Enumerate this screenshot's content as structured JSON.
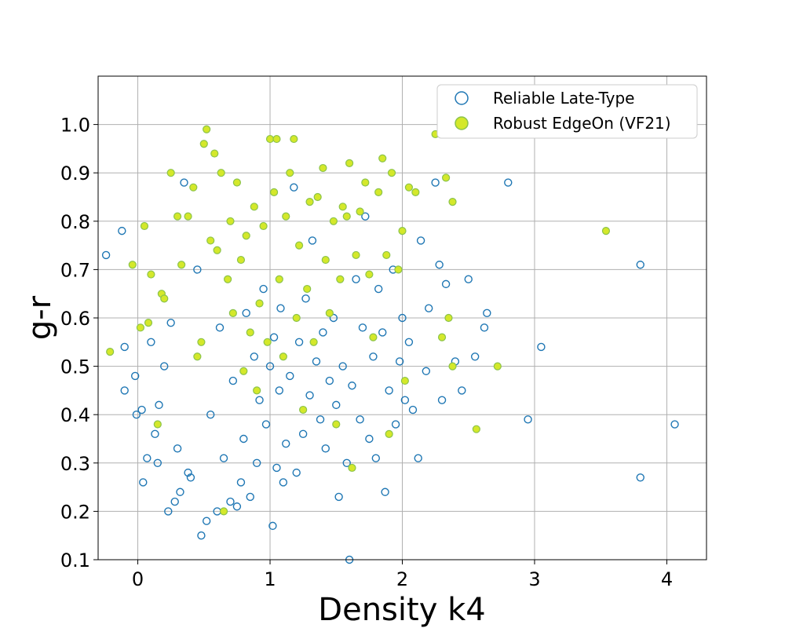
{
  "chart_data": {
    "type": "scatter",
    "title": "",
    "xlabel": "Density k4",
    "ylabel": "g-r",
    "xlim": [
      -0.3,
      4.3
    ],
    "ylim": [
      0.1,
      1.1
    ],
    "xticks": [
      "0",
      "1",
      "2",
      "3",
      "4"
    ],
    "yticks": [
      "0.1",
      "0.2",
      "0.3",
      "0.4",
      "0.5",
      "0.6",
      "0.7",
      "0.8",
      "0.9",
      "1.0"
    ],
    "grid": true,
    "legend_position": "top-right",
    "colors": {
      "late_type_edge": "#1f77b4",
      "edgeon_fill": "#d4e82a",
      "edgeon_edge": "#8bc34a",
      "grid": "#b0b0b0"
    },
    "series": [
      {
        "name": "Reliable Late-Type",
        "marker": "open-circle",
        "points": [
          [
            -0.24,
            0.73
          ],
          [
            -0.12,
            0.78
          ],
          [
            -0.1,
            0.45
          ],
          [
            -0.1,
            0.54
          ],
          [
            -0.02,
            0.48
          ],
          [
            -0.01,
            0.4
          ],
          [
            0.03,
            0.41
          ],
          [
            0.04,
            0.26
          ],
          [
            0.07,
            0.31
          ],
          [
            0.1,
            0.55
          ],
          [
            0.13,
            0.36
          ],
          [
            0.15,
            0.3
          ],
          [
            0.16,
            0.42
          ],
          [
            0.2,
            0.5
          ],
          [
            0.23,
            0.2
          ],
          [
            0.25,
            0.59
          ],
          [
            0.28,
            0.22
          ],
          [
            0.3,
            0.33
          ],
          [
            0.32,
            0.24
          ],
          [
            0.35,
            0.88
          ],
          [
            0.38,
            0.28
          ],
          [
            0.4,
            0.27
          ],
          [
            0.45,
            0.7
          ],
          [
            0.48,
            0.15
          ],
          [
            0.52,
            0.18
          ],
          [
            0.55,
            0.4
          ],
          [
            0.6,
            0.2
          ],
          [
            0.62,
            0.58
          ],
          [
            0.65,
            0.31
          ],
          [
            0.7,
            0.22
          ],
          [
            0.72,
            0.47
          ],
          [
            0.75,
            0.21
          ],
          [
            0.78,
            0.26
          ],
          [
            0.8,
            0.35
          ],
          [
            0.82,
            0.61
          ],
          [
            0.85,
            0.23
          ],
          [
            0.88,
            0.52
          ],
          [
            0.9,
            0.3
          ],
          [
            0.92,
            0.43
          ],
          [
            0.95,
            0.66
          ],
          [
            0.97,
            0.38
          ],
          [
            1.0,
            0.5
          ],
          [
            1.02,
            0.17
          ],
          [
            1.03,
            0.56
          ],
          [
            1.05,
            0.29
          ],
          [
            1.07,
            0.45
          ],
          [
            1.08,
            0.62
          ],
          [
            1.1,
            0.26
          ],
          [
            1.12,
            0.34
          ],
          [
            1.15,
            0.48
          ],
          [
            1.18,
            0.87
          ],
          [
            1.2,
            0.28
          ],
          [
            1.22,
            0.55
          ],
          [
            1.25,
            0.36
          ],
          [
            1.27,
            0.64
          ],
          [
            1.3,
            0.44
          ],
          [
            1.32,
            0.76
          ],
          [
            1.35,
            0.51
          ],
          [
            1.38,
            0.39
          ],
          [
            1.4,
            0.57
          ],
          [
            1.42,
            0.33
          ],
          [
            1.45,
            0.47
          ],
          [
            1.48,
            0.6
          ],
          [
            1.5,
            0.42
          ],
          [
            1.52,
            0.23
          ],
          [
            1.55,
            0.5
          ],
          [
            1.58,
            0.3
          ],
          [
            1.6,
            0.1
          ],
          [
            1.62,
            0.46
          ],
          [
            1.65,
            0.68
          ],
          [
            1.68,
            0.39
          ],
          [
            1.7,
            0.58
          ],
          [
            1.72,
            0.81
          ],
          [
            1.75,
            0.35
          ],
          [
            1.78,
            0.52
          ],
          [
            1.8,
            0.31
          ],
          [
            1.82,
            0.66
          ],
          [
            1.85,
            0.57
          ],
          [
            1.87,
            0.24
          ],
          [
            1.9,
            0.45
          ],
          [
            1.93,
            0.7
          ],
          [
            1.95,
            0.38
          ],
          [
            1.98,
            0.51
          ],
          [
            2.0,
            0.6
          ],
          [
            2.02,
            0.43
          ],
          [
            2.05,
            0.55
          ],
          [
            2.08,
            0.41
          ],
          [
            2.12,
            0.31
          ],
          [
            2.14,
            0.76
          ],
          [
            2.18,
            0.49
          ],
          [
            2.2,
            0.62
          ],
          [
            2.25,
            0.88
          ],
          [
            2.28,
            0.71
          ],
          [
            2.3,
            0.43
          ],
          [
            2.33,
            0.67
          ],
          [
            2.4,
            0.51
          ],
          [
            2.45,
            0.45
          ],
          [
            2.5,
            0.68
          ],
          [
            2.55,
            0.52
          ],
          [
            2.62,
            0.58
          ],
          [
            2.64,
            0.61
          ],
          [
            2.8,
            0.88
          ],
          [
            2.95,
            0.39
          ],
          [
            3.05,
            0.54
          ],
          [
            3.8,
            0.71
          ],
          [
            3.8,
            0.27
          ],
          [
            4.06,
            0.38
          ]
        ]
      },
      {
        "name": "Robust EdgeOn (VF21)",
        "marker": "filled-circle",
        "points": [
          [
            -0.21,
            0.53
          ],
          [
            -0.04,
            0.71
          ],
          [
            0.02,
            0.58
          ],
          [
            0.05,
            0.79
          ],
          [
            0.08,
            0.59
          ],
          [
            0.1,
            0.69
          ],
          [
            0.15,
            0.38
          ],
          [
            0.18,
            0.65
          ],
          [
            0.2,
            0.64
          ],
          [
            0.25,
            0.9
          ],
          [
            0.3,
            0.81
          ],
          [
            0.33,
            0.71
          ],
          [
            0.38,
            0.81
          ],
          [
            0.42,
            0.87
          ],
          [
            0.45,
            0.52
          ],
          [
            0.48,
            0.55
          ],
          [
            0.5,
            0.96
          ],
          [
            0.52,
            0.99
          ],
          [
            0.55,
            0.76
          ],
          [
            0.58,
            0.94
          ],
          [
            0.6,
            0.74
          ],
          [
            0.63,
            0.9
          ],
          [
            0.65,
            0.2
          ],
          [
            0.68,
            0.68
          ],
          [
            0.7,
            0.8
          ],
          [
            0.72,
            0.61
          ],
          [
            0.75,
            0.88
          ],
          [
            0.78,
            0.72
          ],
          [
            0.8,
            0.49
          ],
          [
            0.82,
            0.77
          ],
          [
            0.85,
            0.57
          ],
          [
            0.88,
            0.83
          ],
          [
            0.9,
            0.45
          ],
          [
            0.92,
            0.63
          ],
          [
            0.95,
            0.79
          ],
          [
            0.98,
            0.55
          ],
          [
            1.0,
            0.97
          ],
          [
            1.03,
            0.86
          ],
          [
            1.05,
            0.97
          ],
          [
            1.07,
            0.68
          ],
          [
            1.1,
            0.52
          ],
          [
            1.12,
            0.81
          ],
          [
            1.15,
            0.9
          ],
          [
            1.18,
            0.97
          ],
          [
            1.2,
            0.6
          ],
          [
            1.22,
            0.75
          ],
          [
            1.25,
            0.41
          ],
          [
            1.28,
            0.66
          ],
          [
            1.3,
            0.84
          ],
          [
            1.33,
            0.55
          ],
          [
            1.36,
            0.85
          ],
          [
            1.4,
            0.91
          ],
          [
            1.42,
            0.72
          ],
          [
            1.45,
            0.61
          ],
          [
            1.48,
            0.8
          ],
          [
            1.5,
            0.38
          ],
          [
            1.53,
            0.68
          ],
          [
            1.55,
            0.83
          ],
          [
            1.58,
            0.81
          ],
          [
            1.6,
            0.92
          ],
          [
            1.62,
            0.29
          ],
          [
            1.65,
            0.73
          ],
          [
            1.68,
            0.82
          ],
          [
            1.72,
            0.88
          ],
          [
            1.75,
            0.69
          ],
          [
            1.78,
            0.56
          ],
          [
            1.82,
            0.86
          ],
          [
            1.85,
            0.93
          ],
          [
            1.88,
            0.73
          ],
          [
            1.9,
            0.36
          ],
          [
            1.92,
            0.9
          ],
          [
            1.97,
            0.7
          ],
          [
            2.0,
            0.78
          ],
          [
            2.02,
            0.47
          ],
          [
            2.05,
            0.87
          ],
          [
            2.1,
            0.86
          ],
          [
            2.25,
            0.98
          ],
          [
            2.3,
            0.56
          ],
          [
            2.33,
            0.89
          ],
          [
            2.35,
            0.6
          ],
          [
            2.38,
            0.84
          ],
          [
            2.38,
            0.5
          ],
          [
            2.56,
            0.37
          ],
          [
            2.72,
            0.5
          ],
          [
            3.54,
            0.78
          ]
        ]
      }
    ]
  }
}
